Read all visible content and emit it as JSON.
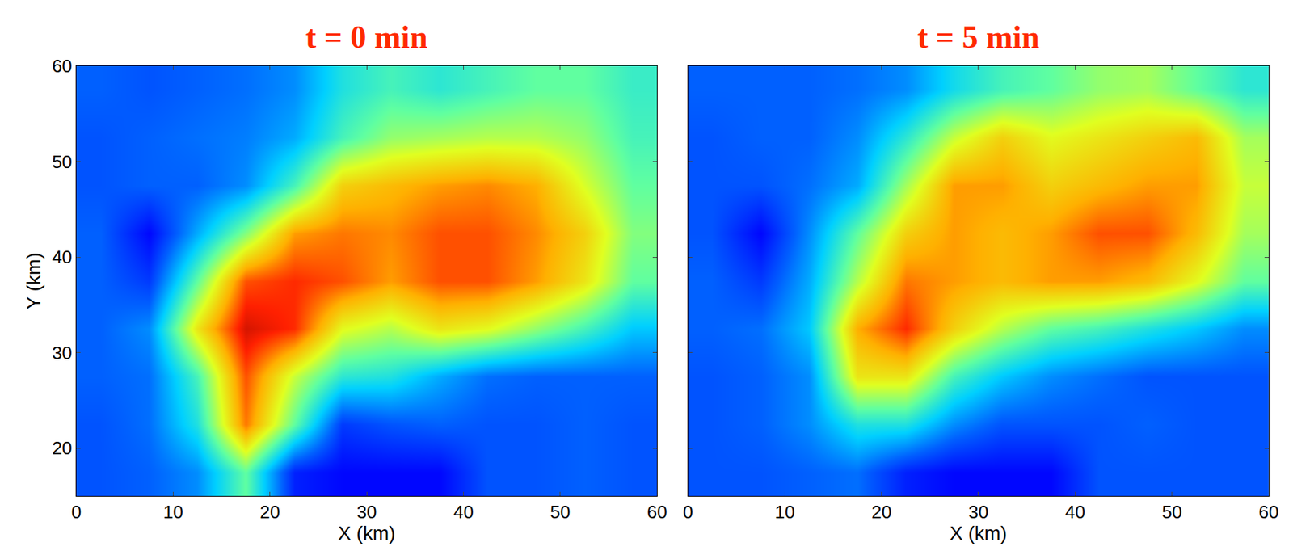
{
  "chart_data": [
    {
      "type": "heatmap",
      "title": "t = 0 min",
      "x_label": "X (km)",
      "y_label": "Y (km)",
      "x": [
        2.5,
        7.5,
        12.5,
        17.5,
        22.5,
        27.5,
        32.5,
        37.5,
        42.5,
        47.5,
        52.5,
        57.5
      ],
      "y": [
        17.5,
        22.5,
        27.5,
        32.5,
        37.5,
        42.5,
        47.5,
        52.5,
        57.5
      ],
      "z": [
        [
          14,
          15,
          18,
          30,
          10,
          8,
          8,
          8,
          14,
          14,
          15,
          14
        ],
        [
          14,
          16,
          25,
          48,
          30,
          12,
          14,
          15,
          14,
          14,
          15,
          14
        ],
        [
          15,
          16,
          28,
          50,
          36,
          26,
          25,
          20,
          16,
          15,
          15,
          15
        ],
        [
          15,
          18,
          40,
          55,
          52,
          38,
          35,
          40,
          38,
          33,
          28,
          22
        ],
        [
          15,
          12,
          30,
          50,
          52,
          50,
          46,
          50,
          50,
          46,
          40,
          30
        ],
        [
          15,
          8,
          20,
          32,
          46,
          48,
          47,
          50,
          50,
          47,
          42,
          32
        ],
        [
          14,
          15,
          15,
          18,
          28,
          42,
          44,
          46,
          47,
          45,
          37,
          30
        ],
        [
          14,
          15,
          16,
          17,
          20,
          28,
          33,
          34,
          35,
          35,
          33,
          28
        ],
        [
          15,
          14,
          15,
          16,
          18,
          25,
          28,
          26,
          28,
          30,
          30,
          27
        ]
      ],
      "zlim": [
        0,
        60
      ],
      "xlim": [
        0,
        60
      ],
      "ylim": [
        15,
        60
      ],
      "xticks": [
        0,
        10,
        20,
        30,
        40,
        50,
        60
      ],
      "yticks": [
        20,
        30,
        40,
        50,
        60
      ]
    },
    {
      "type": "heatmap",
      "title": "t = 5 min",
      "x_label": "X (km)",
      "x": [
        2.5,
        7.5,
        12.5,
        17.5,
        22.5,
        27.5,
        32.5,
        37.5,
        42.5,
        47.5,
        52.5,
        57.5
      ],
      "y": [
        17.5,
        22.5,
        27.5,
        32.5,
        37.5,
        42.5,
        47.5,
        52.5,
        57.5
      ],
      "z": [
        [
          14,
          14,
          15,
          16,
          10,
          8,
          8,
          8,
          14,
          14,
          14,
          14
        ],
        [
          14,
          15,
          18,
          25,
          25,
          18,
          14,
          14,
          14,
          15,
          14,
          14
        ],
        [
          14,
          15,
          18,
          40,
          40,
          28,
          22,
          18,
          16,
          14,
          14,
          14
        ],
        [
          15,
          16,
          22,
          45,
          52,
          42,
          35,
          30,
          28,
          25,
          22,
          18
        ],
        [
          15,
          12,
          20,
          35,
          48,
          46,
          44,
          46,
          46,
          44,
          38,
          30
        ],
        [
          14,
          8,
          18,
          30,
          42,
          46,
          44,
          46,
          50,
          50,
          44,
          34
        ],
        [
          14,
          14,
          16,
          20,
          34,
          46,
          46,
          42,
          44,
          46,
          46,
          36
        ],
        [
          14,
          15,
          15,
          18,
          26,
          36,
          42,
          38,
          40,
          42,
          44,
          34
        ],
        [
          15,
          15,
          15,
          16,
          18,
          24,
          28,
          30,
          33,
          34,
          30,
          26
        ]
      ],
      "zlim": [
        0,
        60
      ],
      "xlim": [
        0,
        60
      ],
      "ylim": [
        15,
        60
      ],
      "xticks": [
        0,
        10,
        20,
        30,
        40,
        50,
        60
      ],
      "yticks": [
        20,
        30,
        40,
        50,
        60
      ],
      "tick_labels": "x"
    }
  ]
}
